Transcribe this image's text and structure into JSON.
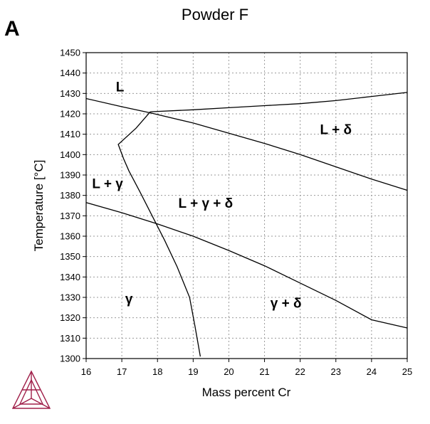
{
  "panel_letter": "A",
  "chart_data": {
    "type": "line",
    "title": "Powder F",
    "xlabel": "Mass percent Cr",
    "ylabel": "Temperature [°C]",
    "xlim": [
      16,
      25
    ],
    "ylim": [
      1300,
      1450
    ],
    "xticks": [
      16,
      17,
      18,
      19,
      20,
      21,
      22,
      23,
      24,
      25
    ],
    "yticks": [
      1300,
      1310,
      1320,
      1330,
      1340,
      1350,
      1360,
      1370,
      1380,
      1390,
      1400,
      1410,
      1420,
      1430,
      1440,
      1450
    ],
    "grid": true,
    "series": [
      {
        "points": [
          [
            17.8,
            1421
          ],
          [
            19.0,
            1422
          ],
          [
            20.0,
            1423
          ],
          [
            21.0,
            1424
          ],
          [
            22.0,
            1425
          ],
          [
            23.0,
            1426.5
          ],
          [
            24.0,
            1428.5
          ],
          [
            25.0,
            1430.5
          ]
        ]
      },
      {
        "points": [
          [
            16.0,
            1427.5
          ],
          [
            17.0,
            1423.5
          ],
          [
            17.8,
            1420.5
          ],
          [
            19.0,
            1415.5
          ],
          [
            20.0,
            1410.5
          ],
          [
            21.0,
            1405.5
          ],
          [
            22.0,
            1400
          ],
          [
            23.0,
            1394
          ],
          [
            24.0,
            1388
          ],
          [
            25.0,
            1382.5
          ]
        ]
      },
      {
        "points": [
          [
            17.8,
            1421
          ],
          [
            17.4,
            1413
          ],
          [
            16.9,
            1405
          ],
          [
            17.05,
            1398
          ],
          [
            17.2,
            1392
          ],
          [
            17.5,
            1382
          ],
          [
            17.85,
            1370
          ],
          [
            18.2,
            1358
          ],
          [
            18.55,
            1345
          ],
          [
            18.9,
            1330
          ],
          [
            19.05,
            1316
          ],
          [
            19.2,
            1301
          ]
        ]
      },
      {
        "points": [
          [
            16.0,
            1376.5
          ],
          [
            17.0,
            1371.5
          ],
          [
            18.0,
            1366
          ],
          [
            19.0,
            1360
          ],
          [
            20.0,
            1353
          ],
          [
            21.0,
            1345.5
          ],
          [
            22.0,
            1337
          ],
          [
            23.0,
            1328.5
          ],
          [
            24.0,
            1319
          ],
          [
            25.0,
            1315
          ]
        ]
      }
    ],
    "annotations": [
      {
        "text": "L",
        "x": 16.95,
        "y": 1431
      },
      {
        "text": "L + δ",
        "x": 23.0,
        "y": 1410
      },
      {
        "text": "L + γ",
        "x": 16.6,
        "y": 1383.5
      },
      {
        "text": "L + γ + δ",
        "x": 19.35,
        "y": 1374
      },
      {
        "text": "γ",
        "x": 17.2,
        "y": 1327
      },
      {
        "text": "γ + δ",
        "x": 21.6,
        "y": 1325
      }
    ]
  }
}
